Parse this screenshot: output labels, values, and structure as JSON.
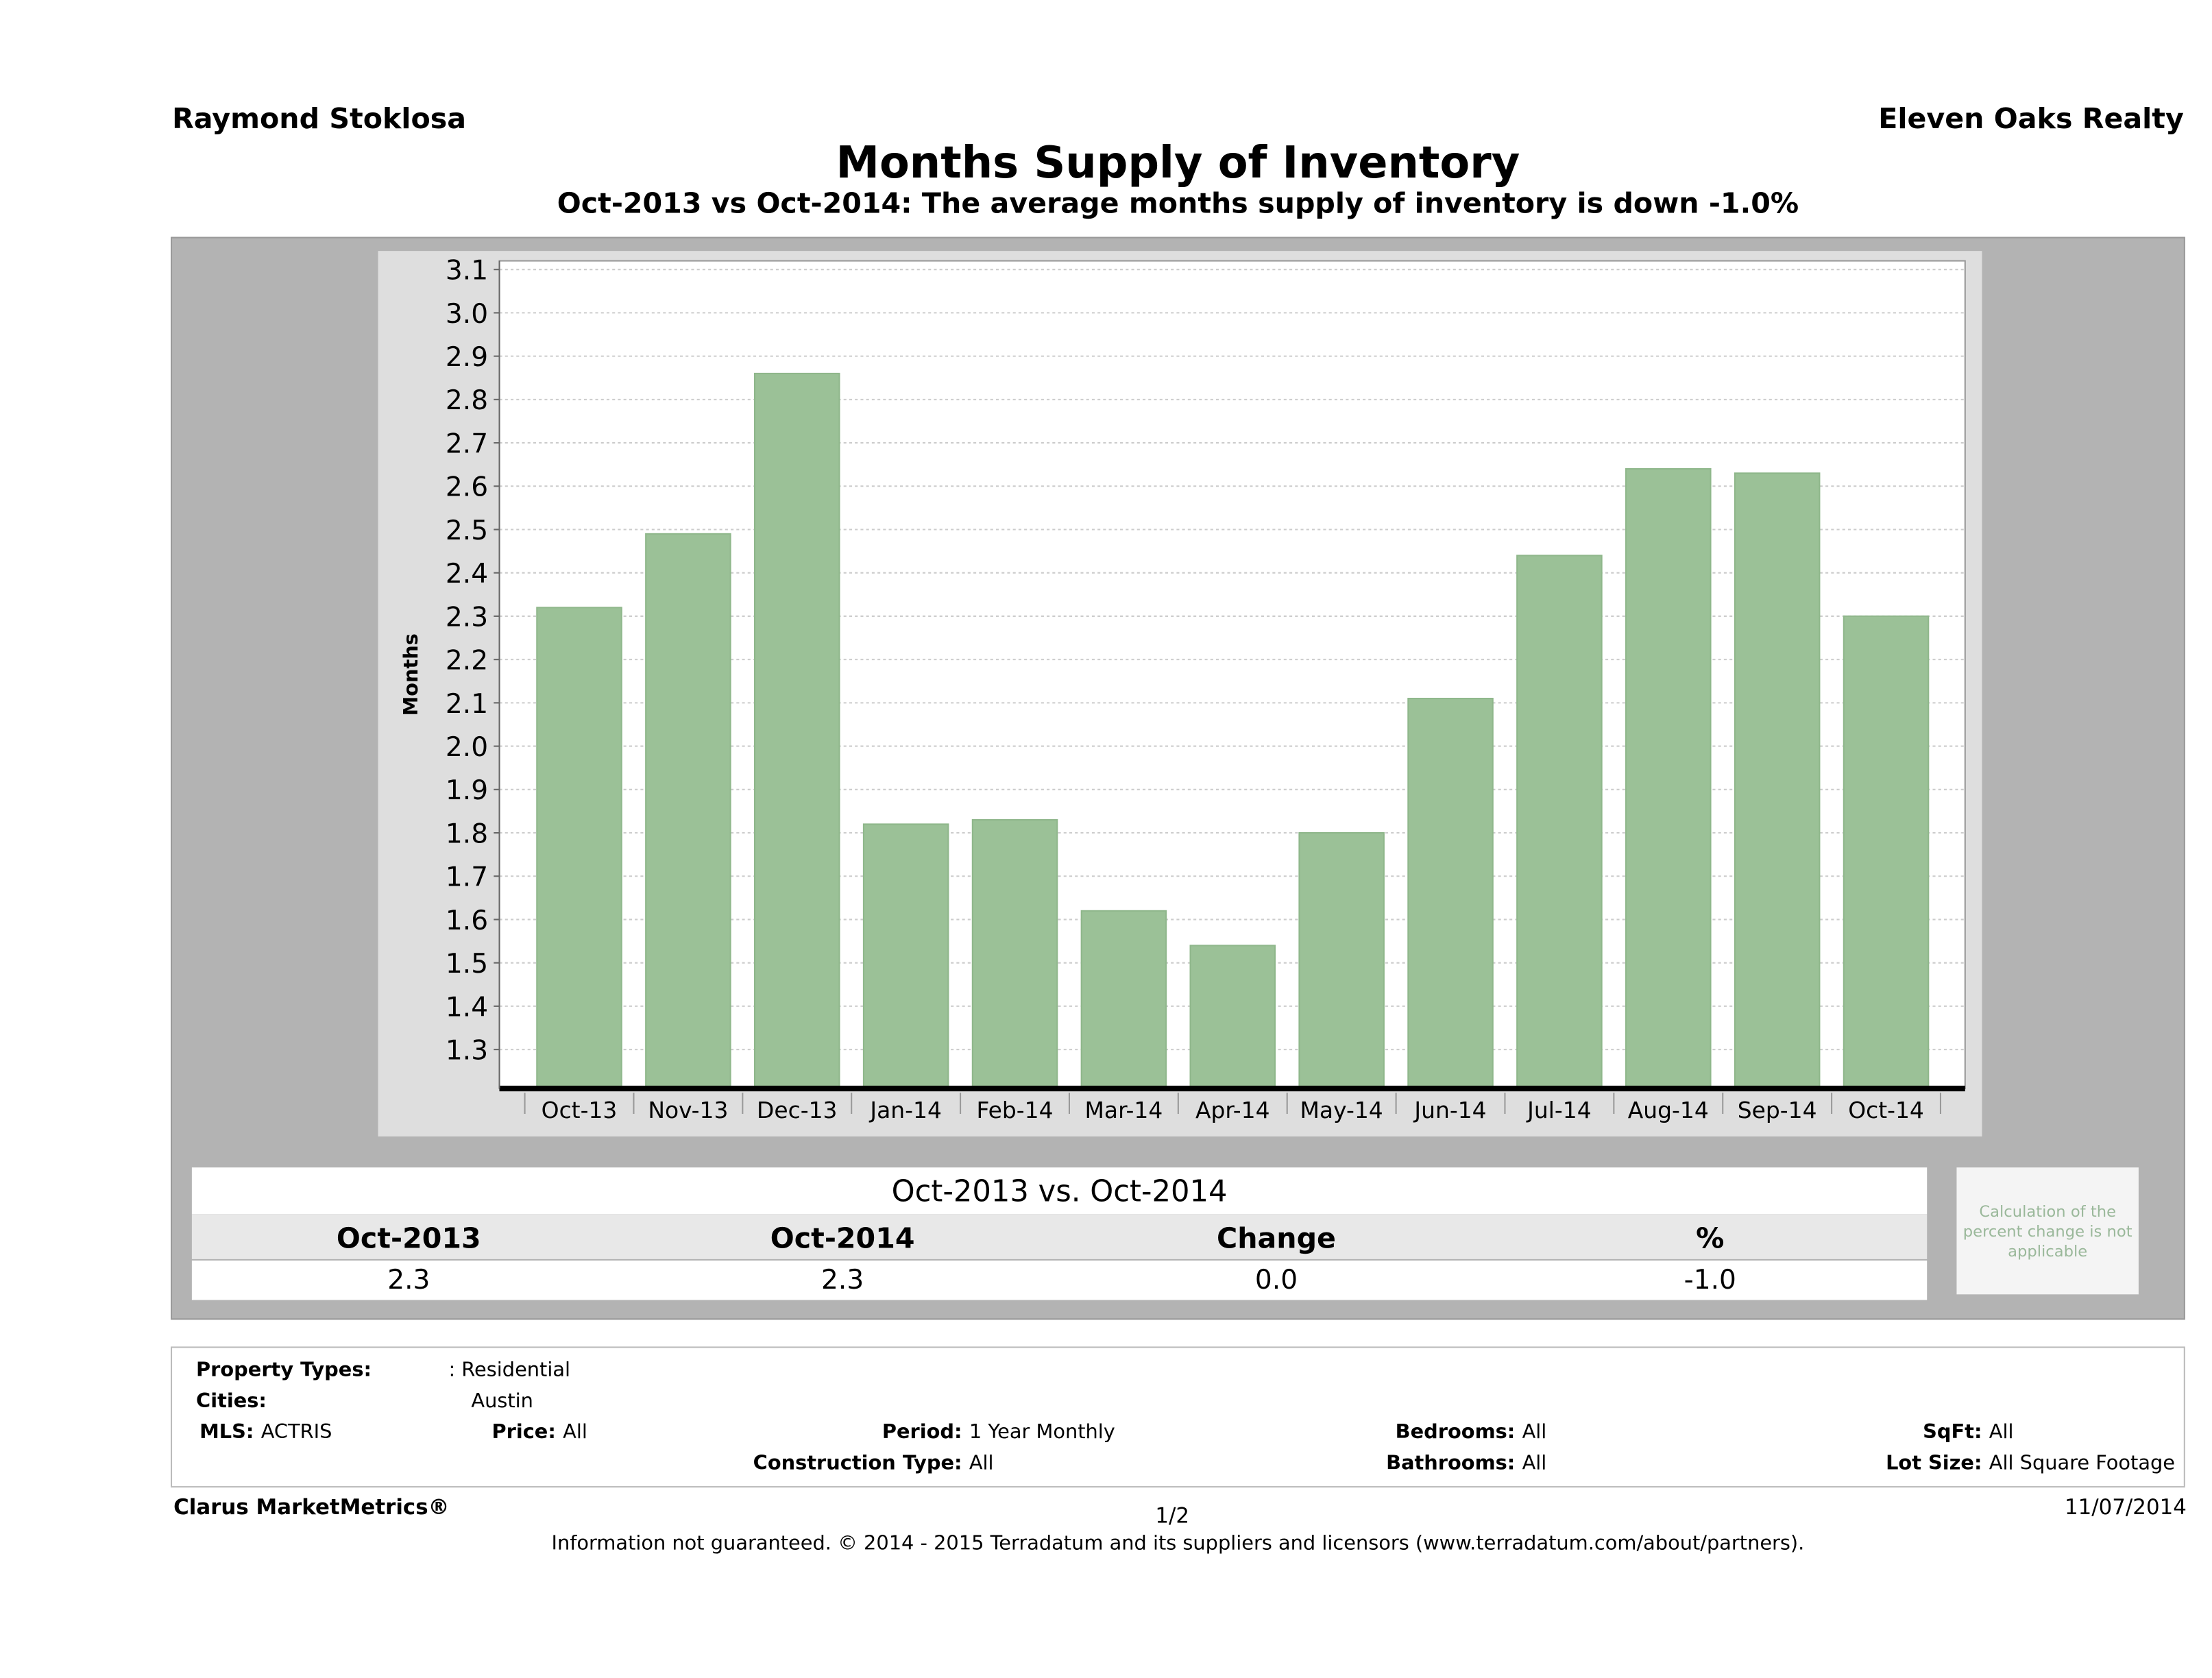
{
  "header": {
    "agent": "Raymond Stoklosa",
    "company": "Eleven Oaks Realty"
  },
  "chart_data": {
    "type": "bar",
    "title": "Months Supply of Inventory",
    "subtitle": "Oct-2013 vs Oct-2014: The average months supply of inventory is down -1.0%",
    "xlabel": "",
    "ylabel": "Months",
    "ylim": [
      1.21,
      3.12
    ],
    "yticks": [
      "1.3",
      "1.4",
      "1.5",
      "1.6",
      "1.7",
      "1.8",
      "1.9",
      "2.0",
      "2.1",
      "2.2",
      "2.3",
      "2.4",
      "2.5",
      "2.6",
      "2.7",
      "2.8",
      "2.9",
      "3.0",
      "3.1"
    ],
    "grid": true,
    "bar_color": "#9bc197",
    "categories": [
      "Oct-13",
      "Nov-13",
      "Dec-13",
      "Jan-14",
      "Feb-14",
      "Mar-14",
      "Apr-14",
      "May-14",
      "Jun-14",
      "Jul-14",
      "Aug-14",
      "Sep-14",
      "Oct-14"
    ],
    "values": [
      2.32,
      2.49,
      2.86,
      1.82,
      1.83,
      1.62,
      1.54,
      1.8,
      2.11,
      2.44,
      2.64,
      2.63,
      2.3
    ]
  },
  "comparison": {
    "title": "Oct-2013 vs. Oct-2014",
    "headers": [
      "Oct-2013",
      "Oct-2014",
      "Change",
      "%"
    ],
    "values": [
      "2.3",
      "2.3",
      "0.0",
      "-1.0"
    ],
    "note": "Calculation of the percent change is not applicable"
  },
  "filters": {
    "property_types_label": "Property Types:",
    "property_types": ": Residential",
    "cities_label": "Cities:",
    "cities": "Austin",
    "mls_label": "MLS:",
    "mls": "ACTRIS",
    "price_label": "Price:",
    "price": "All",
    "period_label": "Period:",
    "period": "1 Year Monthly",
    "bedrooms_label": "Bedrooms:",
    "bedrooms": "All",
    "sqft_label": "SqFt:",
    "sqft": "All",
    "construction_label": "Construction Type:",
    "construction": "All",
    "bathrooms_label": "Bathrooms:",
    "bathrooms": "All",
    "lotsize_label": "Lot Size:",
    "lotsize": "All Square Footage"
  },
  "footer": {
    "brand": "Clarus MarketMetrics®",
    "page": "1/2",
    "date": "11/07/2014",
    "disclaimer": "Information not guaranteed. © 2014 - 2015 Terradatum and its suppliers and licensors (www.terradatum.com/about/partners)."
  }
}
